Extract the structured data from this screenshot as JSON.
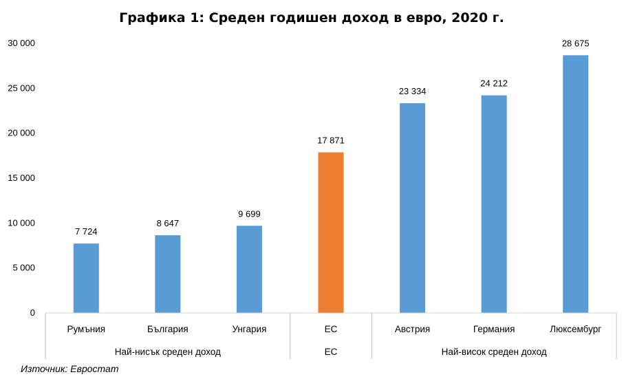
{
  "chart_data": {
    "type": "bar",
    "title": "Графика 1: Среден годишен доход в евро, 2020 г.",
    "categories": [
      "Румъния",
      "България",
      "Унгария",
      "ЕС",
      "Австрия",
      "Германия",
      "Люксембург"
    ],
    "values": [
      7724,
      8647,
      9699,
      17871,
      23334,
      24212,
      28675
    ],
    "data_labels": [
      "7 724",
      "8 647",
      "9 699",
      "17 871",
      "23 334",
      "24 212",
      "28 675"
    ],
    "bar_colors": [
      "#5b9bd5",
      "#5b9bd5",
      "#5b9bd5",
      "#ed7d31",
      "#5b9bd5",
      "#5b9bd5",
      "#5b9bd5"
    ],
    "groups": [
      {
        "label": "Най-нисък среден доход",
        "span": 3
      },
      {
        "label": "ЕС",
        "span": 1
      },
      {
        "label": "Най-висок среден доход",
        "span": 3
      }
    ],
    "ylim": [
      0,
      30000
    ],
    "y_ticks": [
      0,
      5000,
      10000,
      15000,
      20000,
      25000,
      30000
    ],
    "y_tick_labels": [
      "0",
      "5 000",
      "10 000",
      "15 000",
      "20 000",
      "25 000",
      "30 000"
    ],
    "grid": false,
    "legend": "none"
  },
  "source": "Източник: Евростат"
}
